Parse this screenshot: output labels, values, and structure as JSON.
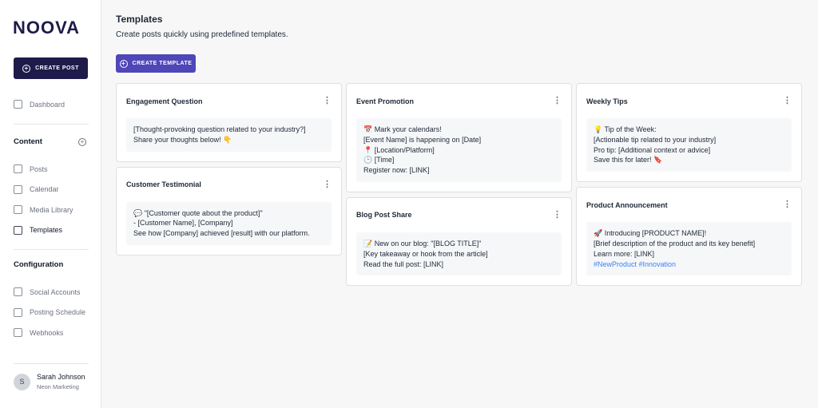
{
  "sidebar": {
    "logo": "NOOVA",
    "create_post": "CREATE POST",
    "dashboard": "Dashboard",
    "sections": [
      {
        "title": "Content",
        "items": [
          {
            "label": "Posts"
          },
          {
            "label": "Calendar"
          },
          {
            "label": "Media Library"
          },
          {
            "label": "Templates",
            "active": true
          }
        ]
      },
      {
        "title": "Configuration",
        "items": [
          {
            "label": "Social Accounts"
          },
          {
            "label": "Posting Schedule"
          },
          {
            "label": "Webhooks"
          }
        ]
      }
    ],
    "user": {
      "initial": "S",
      "name": "Sarah Johnson",
      "org": "Neon Marketing"
    }
  },
  "header": {
    "title": "Templates",
    "subtitle": "Create posts quickly using predefined templates.",
    "button": "CREATE TEMPLATE"
  },
  "columns": [
    [
      {
        "title": "Engagement Question",
        "lines": [
          "[Thought-provoking question related to your industry?]",
          "Share your thoughts below! 👇"
        ]
      },
      {
        "title": "Customer Testimonial",
        "lines": [
          "💬 \"[Customer quote about the product]\"",
          "- [Customer Name], [Company]",
          "See how [Company] achieved [result] with our platform."
        ]
      }
    ],
    [
      {
        "title": "Event Promotion",
        "lines": [
          "📅 Mark your calendars!",
          "[Event Name] is happening on [Date]",
          "📍 [Location/Platform]",
          "🕒 [Time]",
          "Register now: [LINK]"
        ]
      },
      {
        "title": "Blog Post Share",
        "lines": [
          "📝 New on our blog: \"[BLOG TITLE]\"",
          "[Key takeaway or hook from the article]",
          "Read the full post: [LINK]"
        ]
      }
    ],
    [
      {
        "title": "Weekly Tips",
        "lines": [
          "💡 Tip of the Week:",
          "[Actionable tip related to your industry]",
          "Pro tip: [Additional context or advice]",
          "Save this for later! 🔖"
        ]
      },
      {
        "title": "Product Announcement",
        "lines": [
          "🚀 Introducing [PRODUCT NAME]!",
          "[Brief description of the product and its key benefit]",
          "Learn more: [LINK]"
        ],
        "tags": "#NewProduct #Innovation"
      }
    ]
  ]
}
